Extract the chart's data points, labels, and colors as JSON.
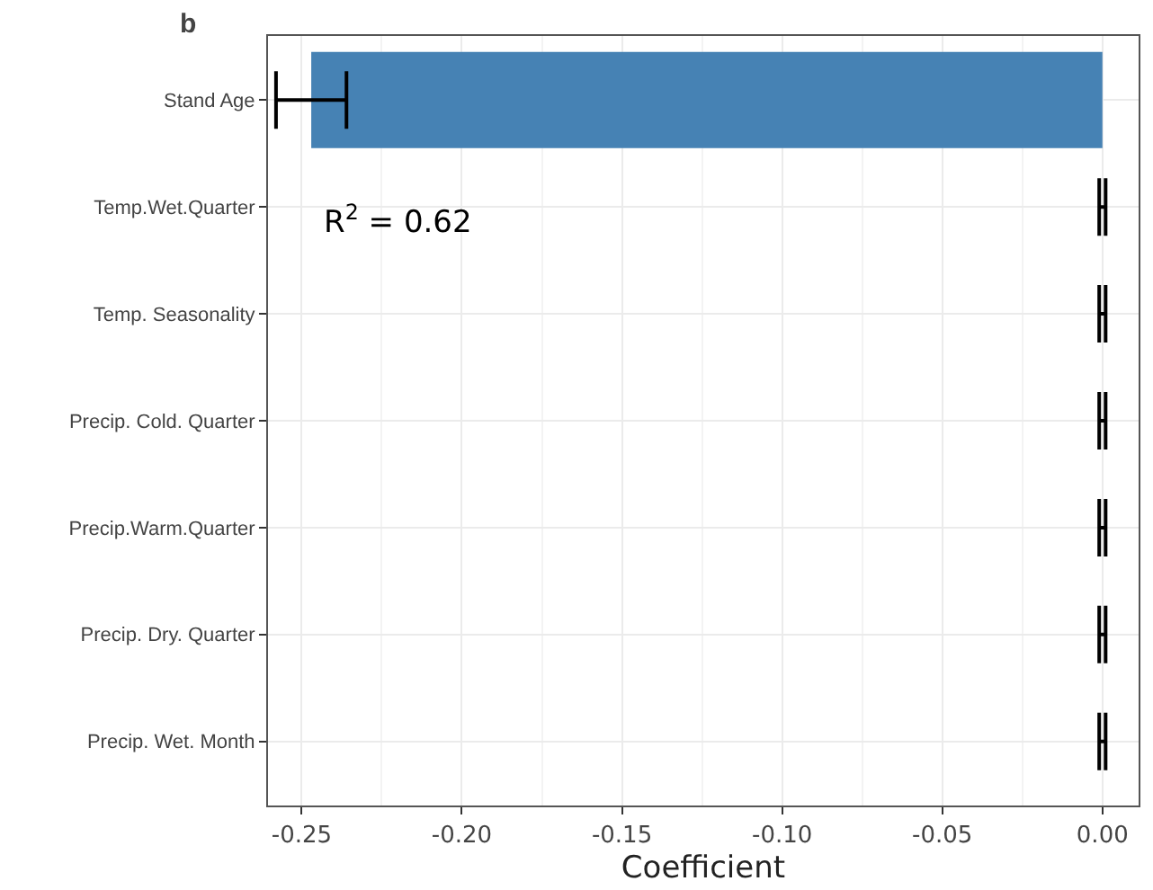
{
  "chart_data": {
    "type": "bar",
    "orientation": "horizontal",
    "title": "b",
    "xlabel": "Coefficient",
    "categories": [
      "Stand Age",
      "Temp.Wet.Quarter",
      "Temp. Seasonality",
      "Precip. Cold. Quarter",
      "Precip.Warm.Quarter",
      "Precip. Dry. Quarter",
      "Precip. Wet. Month"
    ],
    "values": [
      -0.247,
      0,
      0,
      0,
      0,
      0,
      0
    ],
    "errors": [
      0.011,
      0.001,
      0.001,
      0.001,
      0.001,
      0.001,
      0.001
    ],
    "color": "#4682b4",
    "xlim": [
      -0.2605,
      0.0113
    ],
    "xticks": [
      {
        "value": -0.25,
        "label": "-0.25"
      },
      {
        "value": -0.2,
        "label": "-0.20"
      },
      {
        "value": -0.15,
        "label": "-0.15"
      },
      {
        "value": -0.1,
        "label": "-0.10"
      },
      {
        "value": -0.05,
        "label": "-0.05"
      },
      {
        "value": 0,
        "label": "0.00"
      }
    ],
    "annotations": [
      "R$^{2}$ = 0.62"
    ],
    "grid": true
  }
}
